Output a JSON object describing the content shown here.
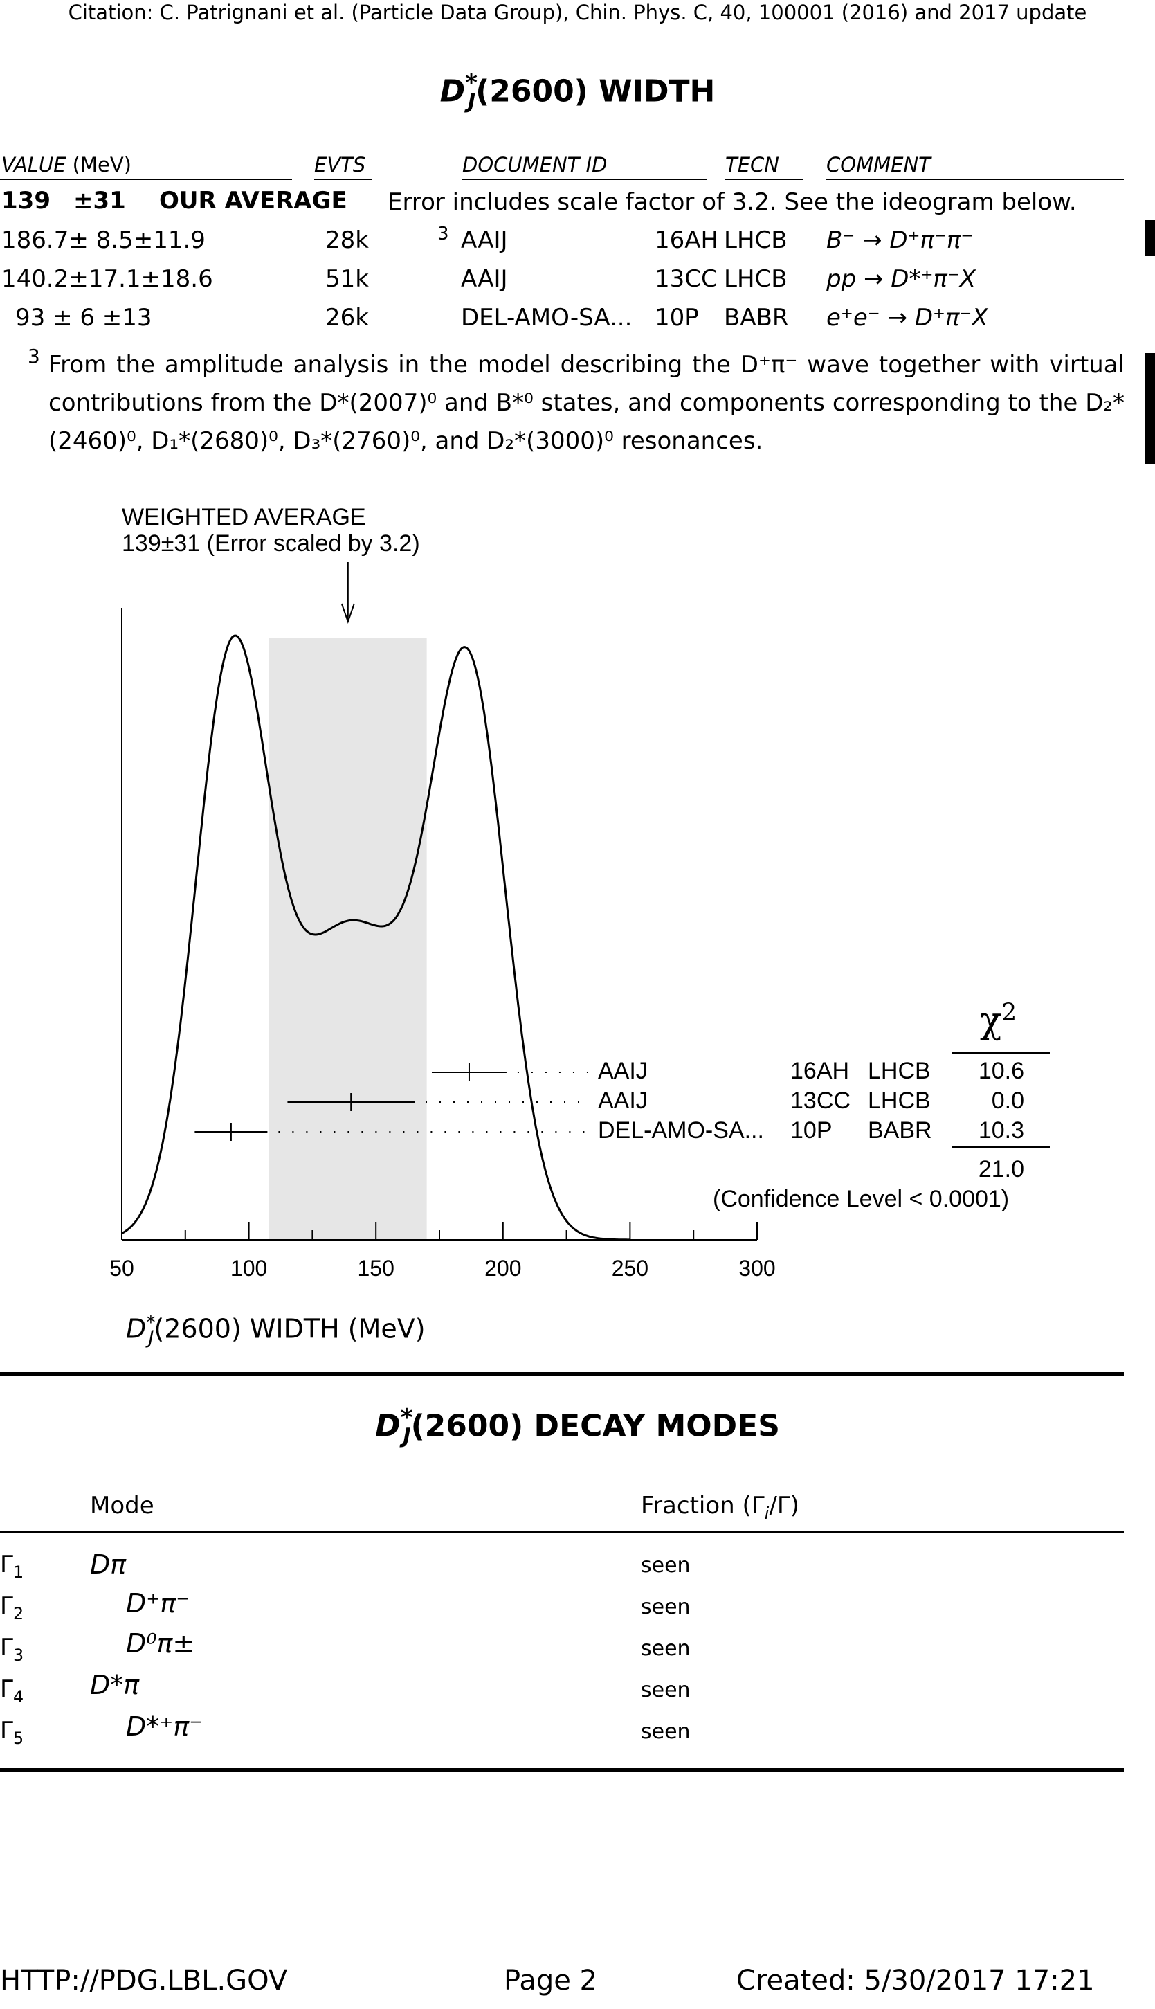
{
  "citation": "Citation: C. Patrignani et al. (Particle Data Group), Chin. Phys. C, 40, 100001 (2016) and 2017 update",
  "width_section": {
    "title_main": "D",
    "title_star": "*",
    "title_sub": "J",
    "title_rest": "(2600) WIDTH",
    "headers": {
      "value": "VALUE",
      "value_unit": "(MeV)",
      "evts": "EVTS",
      "document_id": "DOCUMENT ID",
      "tecn": "TECN",
      "comment": "COMMENT"
    },
    "average": {
      "value": "139",
      "error": "±31",
      "label": "OUR AVERAGE",
      "comment": "Error includes scale factor of 3.2.  See the ideogram below."
    },
    "rows": [
      {
        "value": "186.7± 8.5±11.9",
        "evts": "28k",
        "footnote": "3",
        "doc": "AAIJ",
        "year": "16AH",
        "tecn": "LHCB",
        "comment": "B⁻ → D⁺π⁻π⁻"
      },
      {
        "value": "140.2±17.1±18.6",
        "evts": "51k",
        "footnote": "",
        "doc": "AAIJ",
        "year": "13CC",
        "tecn": "LHCB",
        "comment": "pp → D*⁺π⁻X"
      },
      {
        "value": "93 ± 6 ±13",
        "evts": "26k",
        "footnote": "",
        "doc": "DEL-AMO-SA...",
        "year": "10P",
        "tecn": "BABR",
        "comment": "e⁺e⁻ → D⁺π⁻X"
      }
    ],
    "footnote": {
      "marker": "3",
      "text": "From the amplitude analysis in the model describing the D⁺π⁻ wave together with virtual contributions from the D*(2007)⁰ and B*⁰ states, and components corresponding to the D₂*(2460)⁰, D₁*(2680)⁰, D₃*(2760)⁰, and D₂*(3000)⁰ resonances."
    }
  },
  "chart_data": {
    "type": "ideogram",
    "annotation_line1": "WEIGHTED AVERAGE",
    "annotation_line2": "139±31 (Error scaled by 3.2)",
    "weighted_average": 139,
    "scaled_error": 31,
    "xlim": [
      50,
      300
    ],
    "xticks": [
      50,
      100,
      150,
      200,
      250,
      300
    ],
    "xlabel_main": "D",
    "xlabel_star": "*",
    "xlabel_sub": "J",
    "xlabel_rest": "(2600) WIDTH (MeV)",
    "measurements": [
      {
        "value": 186.7,
        "error": 14.7,
        "label": "AAIJ",
        "ref": "16AH",
        "tecn": "LHCB",
        "chi2": "10.6"
      },
      {
        "value": 140.2,
        "error": 25.0,
        "label": "AAIJ",
        "ref": "13CC",
        "tecn": "LHCB",
        "chi2": "0.0"
      },
      {
        "value": 93.0,
        "error": 14.3,
        "label": "DEL-AMO-SA...",
        "ref": "10P",
        "tecn": "BABR",
        "chi2": "10.3"
      }
    ],
    "chi2_header": "χ",
    "chi2_header_sup": "2",
    "chi2_total": "21.0",
    "confidence_level": "(Confidence Level < 0.0001)"
  },
  "decay_section": {
    "title_main": "D",
    "title_star": "*",
    "title_sub": "J",
    "title_rest": "(2600) DECAY MODES",
    "col_mode": "Mode",
    "col_fraction": "Fraction (Γ",
    "col_fraction_sub": "i",
    "col_fraction_end": "/Γ)",
    "modes": [
      {
        "gamma": "Γ",
        "index": "1",
        "mode": "Dπ",
        "fraction": "seen",
        "indent": false
      },
      {
        "gamma": "Γ",
        "index": "2",
        "mode": "D⁺π⁻",
        "fraction": "seen",
        "indent": true
      },
      {
        "gamma": "Γ",
        "index": "3",
        "mode": "D⁰π±",
        "fraction": "seen",
        "indent": true
      },
      {
        "gamma": "Γ",
        "index": "4",
        "mode": "D*π",
        "fraction": "seen",
        "indent": false
      },
      {
        "gamma": "Γ",
        "index": "5",
        "mode": "D*⁺π⁻",
        "fraction": "seen",
        "indent": true
      }
    ]
  },
  "footer": {
    "url": "HTTP://PDG.LBL.GOV",
    "page": "Page 2",
    "created": "Created: 5/30/2017 17:21"
  }
}
